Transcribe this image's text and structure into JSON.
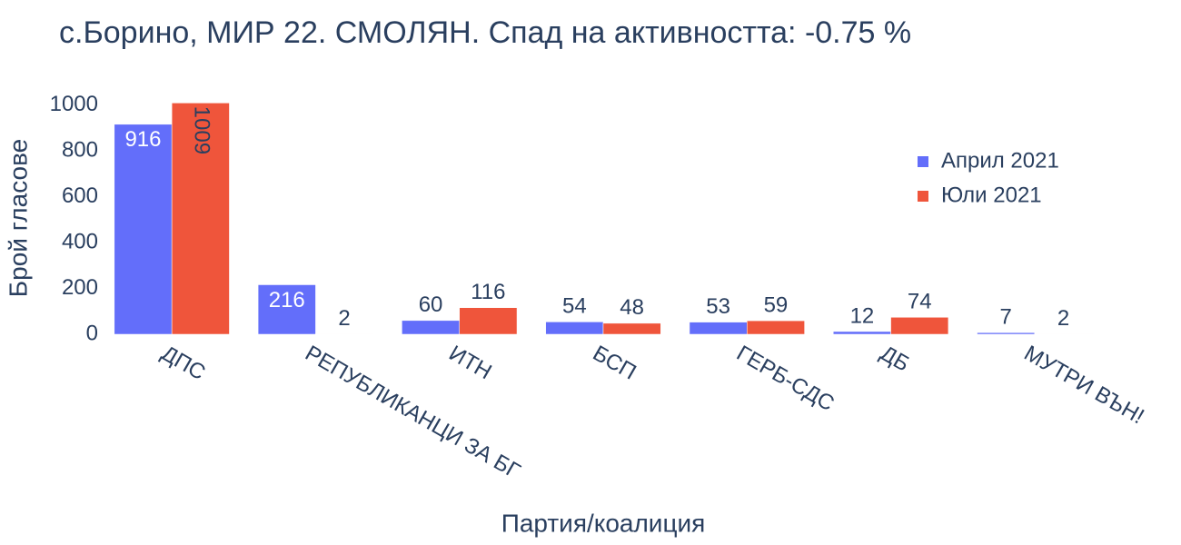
{
  "chart_data": {
    "type": "bar",
    "title": "с.Борино, МИР 22. СМОЛЯН. Спад на активността: -0.75 %",
    "x_label": "Партия/коалиция",
    "y_label": "Брой гласове",
    "categories": [
      "ДПС",
      "РЕПУБЛИКАНЦИ ЗА БГ",
      "ИТН",
      "БСП",
      "ГЕРБ-СДС",
      "ДБ",
      "МУТРИ ВЪН!"
    ],
    "series": [
      {
        "name": "Април 2021",
        "color": "#636efa",
        "values": [
          916,
          216,
          60,
          54,
          53,
          12,
          7
        ]
      },
      {
        "name": "Юли 2021",
        "color": "#ef553b",
        "values": [
          1009,
          2,
          116,
          48,
          59,
          74,
          2
        ]
      }
    ],
    "ylim": [
      0,
      1062
    ],
    "yticks": [
      0,
      200,
      400,
      600,
      800,
      1000
    ],
    "legend": "top-right"
  }
}
